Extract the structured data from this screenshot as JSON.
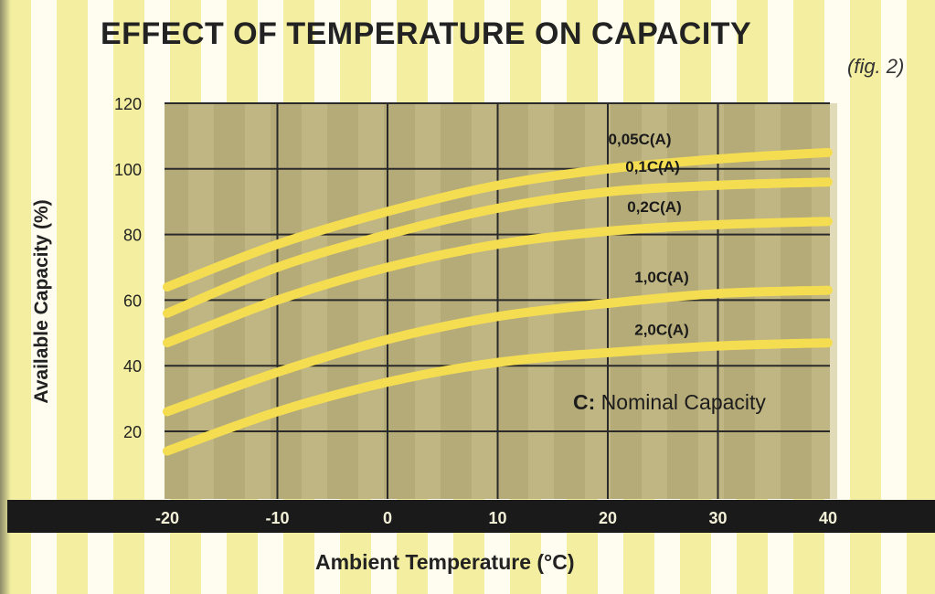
{
  "title": "EFFECT OF TEMPERATURE ON CAPACITY",
  "fig_label": "(fig. 2)",
  "note_prefix": "C:",
  "note_text": " Nominal Capacity",
  "colors": {
    "curve": "#f5dd52",
    "plot_bg": "#b5ab78",
    "plot_band": "#c9c08c",
    "axis_bar": "#1a1a1a",
    "stripe_light": "#fefdf0",
    "stripe_yellow": "#f4efa0"
  },
  "chart_data": {
    "type": "line",
    "title": "EFFECT OF TEMPERATURE ON CAPACITY",
    "xlabel": "Ambient Temperature (°C)",
    "ylabel": "Available Capacity (%)",
    "xlim": [
      -20,
      40
    ],
    "ylim": [
      0,
      120
    ],
    "x_ticks": [
      -20,
      -10,
      0,
      10,
      20,
      30,
      40
    ],
    "y_ticks": [
      20,
      40,
      60,
      80,
      100,
      120
    ],
    "grid": true,
    "x": [
      -20,
      -10,
      0,
      10,
      20,
      30,
      40
    ],
    "series": [
      {
        "name": "0,05C(A)",
        "values": [
          64,
          77,
          87,
          95,
          100,
          103,
          105
        ]
      },
      {
        "name": "0,1C(A)",
        "values": [
          56,
          70,
          80,
          88,
          93,
          95,
          96
        ]
      },
      {
        "name": "0,2C(A)",
        "values": [
          47,
          60,
          70,
          77,
          81,
          83,
          84
        ]
      },
      {
        "name": "1,0C(A)",
        "values": [
          26,
          38,
          48,
          55,
          59,
          62,
          63
        ]
      },
      {
        "name": "2,0C(A)",
        "values": [
          14,
          26,
          35,
          41,
          44,
          46,
          47
        ]
      }
    ]
  }
}
